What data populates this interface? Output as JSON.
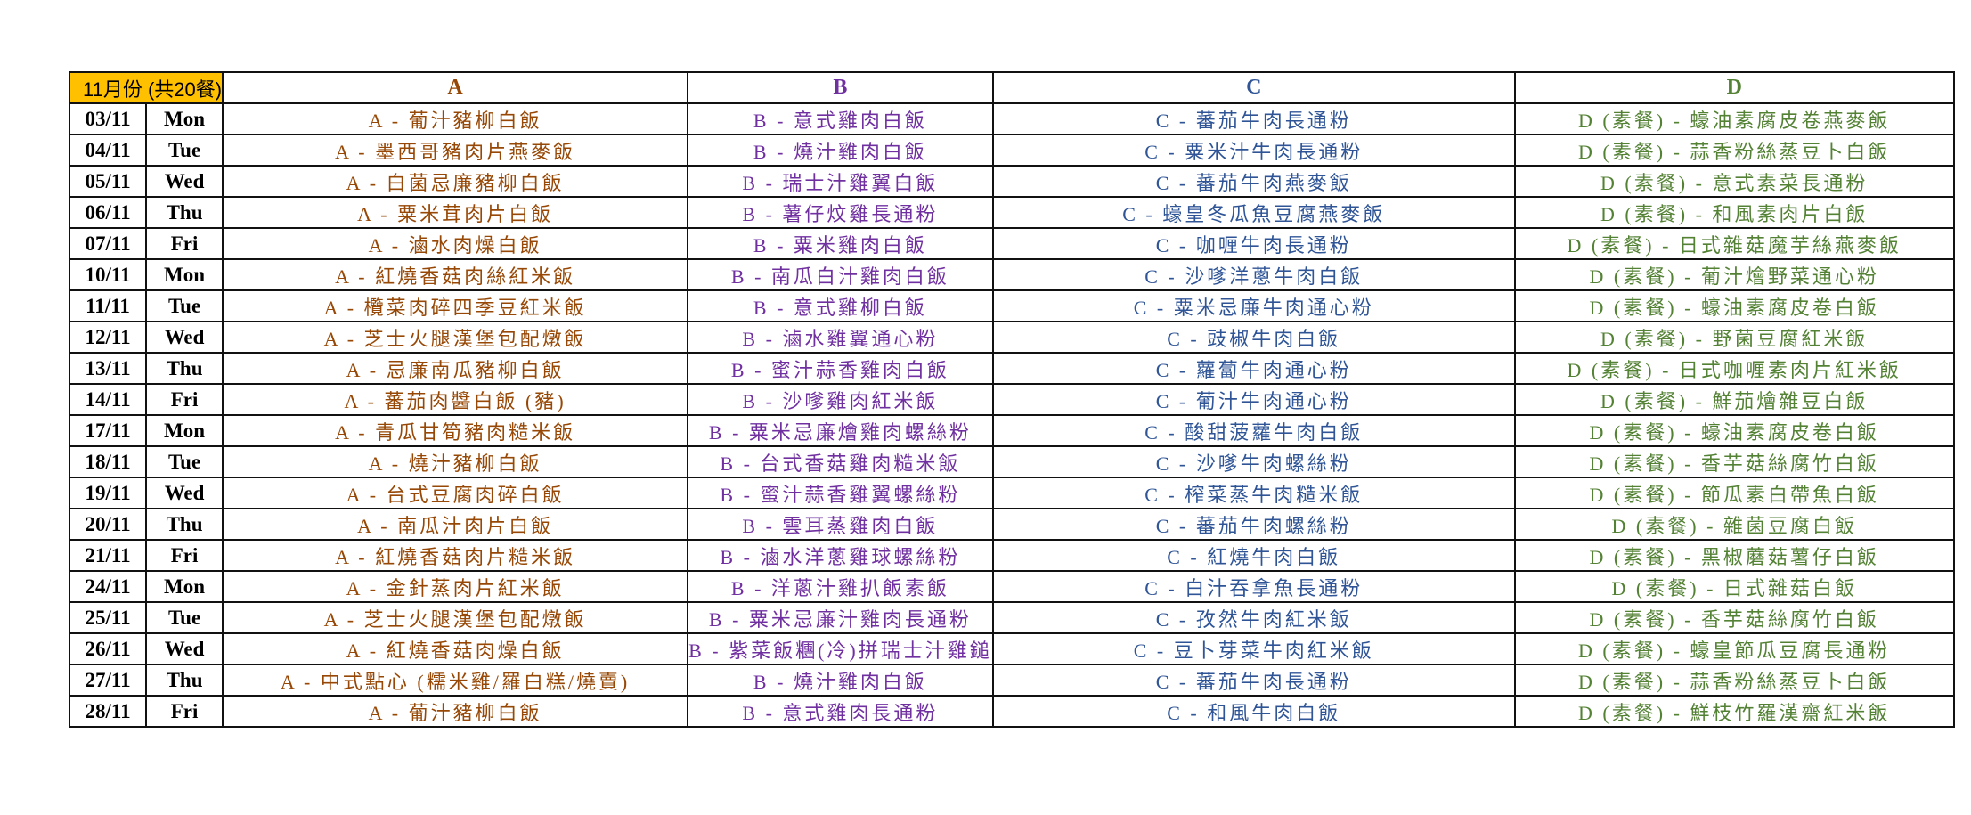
{
  "header": {
    "title": "11月份 (共20餐)",
    "columns": [
      "A",
      "B",
      "C",
      "D"
    ]
  },
  "colors": {
    "title_bg": "#FFC000",
    "A": "#974806",
    "B": "#7030A0",
    "C": "#2F5597",
    "D": "#548235"
  },
  "rows": [
    {
      "date": "03/11",
      "day": "Mon",
      "a": "A - 葡汁豬柳白飯",
      "b": "B - 意式雞肉白飯",
      "c": "C - 蕃茄牛肉長通粉",
      "d": "D (素餐) - 蠔油素腐皮卷燕麥飯"
    },
    {
      "date": "04/11",
      "day": "Tue",
      "a": "A - 墨西哥豬肉片燕麥飯",
      "b": "B - 燒汁雞肉白飯",
      "c": "C - 粟米汁牛肉長通粉",
      "d": "D (素餐) - 蒜香粉絲蒸豆卜白飯"
    },
    {
      "date": "05/11",
      "day": "Wed",
      "a": "A - 白菌忌廉豬柳白飯",
      "b": "B - 瑞士汁雞翼白飯",
      "c": "C - 蕃茄牛肉燕麥飯",
      "d": "D (素餐) - 意式素菜長通粉"
    },
    {
      "date": "06/11",
      "day": "Thu",
      "a": "A - 粟米茸肉片白飯",
      "b": "B - 薯仔炆雞長通粉",
      "c": "C - 蠔皇冬瓜魚豆腐燕麥飯",
      "d": "D (素餐) - 和風素肉片白飯"
    },
    {
      "date": "07/11",
      "day": "Fri",
      "a": "A - 滷水肉燥白飯",
      "b": "B - 粟米雞肉白飯",
      "c": "C - 咖喱牛肉長通粉",
      "d": "D (素餐) - 日式雜菇魔芋絲燕麥飯"
    },
    {
      "date": "10/11",
      "day": "Mon",
      "a": "A - 紅燒香菇肉絲紅米飯",
      "b": "B - 南瓜白汁雞肉白飯",
      "c": "C - 沙嗲洋蔥牛肉白飯",
      "d": "D (素餐) - 葡汁燴野菜通心粉"
    },
    {
      "date": "11/11",
      "day": "Tue",
      "a": "A - 欖菜肉碎四季豆紅米飯",
      "b": "B - 意式雞柳白飯",
      "c": "C - 粟米忌廉牛肉通心粉",
      "d": "D (素餐) - 蠔油素腐皮卷白飯"
    },
    {
      "date": "12/11",
      "day": "Wed",
      "a": "A - 芝士火腿漢堡包配燉飯",
      "b": "B - 滷水雞翼通心粉",
      "c": "C - 豉椒牛肉白飯",
      "d": "D (素餐) - 野菌豆腐紅米飯"
    },
    {
      "date": "13/11",
      "day": "Thu",
      "a": "A - 忌廉南瓜豬柳白飯",
      "b": "B - 蜜汁蒜香雞肉白飯",
      "c": "C - 蘿蔔牛肉通心粉",
      "d": "D (素餐) - 日式咖喱素肉片紅米飯"
    },
    {
      "date": "14/11",
      "day": "Fri",
      "a": "A - 蕃茄肉醬白飯 (豬)",
      "b": "B - 沙嗲雞肉紅米飯",
      "c": "C - 葡汁牛肉通心粉",
      "d": "D (素餐) - 鮮茄燴雜豆白飯"
    },
    {
      "date": "17/11",
      "day": "Mon",
      "a": "A - 青瓜甘筍豬肉糙米飯",
      "b": "B - 粟米忌廉燴雞肉螺絲粉",
      "c": "C - 酸甜菠蘿牛肉白飯",
      "d": "D (素餐) - 蠔油素腐皮卷白飯"
    },
    {
      "date": "18/11",
      "day": "Tue",
      "a": "A - 燒汁豬柳白飯",
      "b": "B - 台式香菇雞肉糙米飯",
      "c": "C - 沙嗲牛肉螺絲粉",
      "d": "D (素餐) - 香芋菇絲腐竹白飯"
    },
    {
      "date": "19/11",
      "day": "Wed",
      "a": "A - 台式豆腐肉碎白飯",
      "b": "B - 蜜汁蒜香雞翼螺絲粉",
      "c": "C - 榨菜蒸牛肉糙米飯",
      "d": "D (素餐) - 節瓜素白帶魚白飯"
    },
    {
      "date": "20/11",
      "day": "Thu",
      "a": "A - 南瓜汁肉片白飯",
      "b": "B - 雲耳蒸雞肉白飯",
      "c": "C - 蕃茄牛肉螺絲粉",
      "d": "D (素餐) - 雜菌豆腐白飯"
    },
    {
      "date": "21/11",
      "day": "Fri",
      "a": "A - 紅燒香菇肉片糙米飯",
      "b": "B - 滷水洋蔥雞球螺絲粉",
      "c": "C - 紅燒牛肉白飯",
      "d": "D (素餐) - 黑椒蘑菇薯仔白飯"
    },
    {
      "date": "24/11",
      "day": "Mon",
      "a": "A - 金針蒸肉片紅米飯",
      "b": "B - 洋蔥汁雞扒飯素飯",
      "c": "C - 白汁吞拿魚長通粉",
      "d": "D (素餐) - 日式雜菇白飯"
    },
    {
      "date": "25/11",
      "day": "Tue",
      "a": "A - 芝士火腿漢堡包配燉飯",
      "b": "B - 粟米忌廉汁雞肉長通粉",
      "c": "C - 孜然牛肉紅米飯",
      "d": "D (素餐) - 香芋菇絲腐竹白飯"
    },
    {
      "date": "26/11",
      "day": "Wed",
      "a": "A - 紅燒香菇肉燥白飯",
      "b": "B - 紫菜飯糰(冷)拼瑞士汁雞鎚",
      "c": "C - 豆卜芽菜牛肉紅米飯",
      "d": "D (素餐) - 蠔皇節瓜豆腐長通粉"
    },
    {
      "date": "27/11",
      "day": "Thu",
      "a": "A - 中式點心 (糯米雞/羅白糕/燒賣)",
      "b": "B - 燒汁雞肉白飯",
      "c": "C - 蕃茄牛肉長通粉",
      "d": "D (素餐) - 蒜香粉絲蒸豆卜白飯"
    },
    {
      "date": "28/11",
      "day": "Fri",
      "a": "A - 葡汁豬柳白飯",
      "b": "B - 意式雞肉長通粉",
      "c": "C - 和風牛肉白飯",
      "d": "D (素餐) - 鮮枝竹羅漢齋紅米飯"
    }
  ]
}
